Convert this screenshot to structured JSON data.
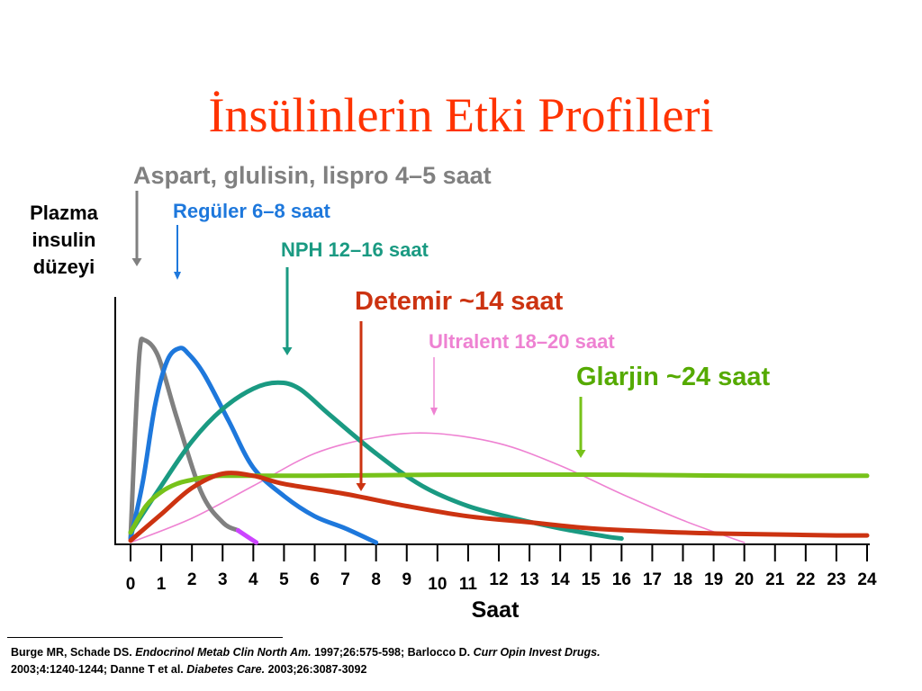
{
  "title": "İnsülinlerin Etki Profilleri",
  "chart_data": {
    "type": "line",
    "xlabel": "Saat",
    "ylabel_lines": [
      "Plazma",
      "insulin",
      "düzeyi"
    ],
    "xlim": [
      0,
      24
    ],
    "ylim": [
      0,
      1
    ],
    "x_ticks": [
      "0",
      "1",
      "2",
      "3",
      "4",
      "5",
      "6",
      "7",
      "8",
      "9",
      "10",
      "11",
      "12",
      "13",
      "14",
      "15",
      "16",
      "17",
      "18",
      "19",
      "20",
      "21",
      "22",
      "23",
      "24"
    ],
    "y_axis_ticks": false,
    "grid": false,
    "series": [
      {
        "name": "Aspart, glulisin, lispro 4–5 saat",
        "color": "#808080",
        "label_color": "#808080",
        "x": [
          0,
          0.15,
          0.3,
          0.45,
          0.9,
          1.5,
          2.3,
          3.0,
          3.5
        ],
        "y": [
          0.02,
          0.55,
          0.95,
          1.0,
          0.92,
          0.62,
          0.25,
          0.1,
          0.06
        ],
        "tail": {
          "color": "#cc44ff",
          "x": [
            3.5,
            3.8,
            4.1
          ],
          "y": [
            0.06,
            0.03,
            0.0
          ]
        }
      },
      {
        "name": "Regüler 6–8 saat",
        "color": "#1e78dc",
        "label_color": "#1e78dc",
        "x": [
          0,
          0.4,
          0.8,
          1.2,
          1.6,
          1.9,
          2.4,
          3.2,
          4.0,
          5.0,
          6.0,
          7.0,
          8.0
        ],
        "y": [
          0.02,
          0.3,
          0.68,
          0.9,
          0.96,
          0.93,
          0.83,
          0.6,
          0.37,
          0.23,
          0.13,
          0.07,
          0.0
        ]
      },
      {
        "name": "NPH 12–16 saat",
        "color": "#1a9a82",
        "label_color": "#1a9a82",
        "x": [
          0,
          1,
          2,
          3,
          4,
          4.8,
          5.5,
          6.5,
          8,
          9.5,
          11,
          12.5,
          14,
          15.5,
          16
        ],
        "y": [
          0.05,
          0.28,
          0.5,
          0.66,
          0.76,
          0.79,
          0.76,
          0.63,
          0.44,
          0.28,
          0.18,
          0.12,
          0.07,
          0.03,
          0.02
        ]
      },
      {
        "name": "Detemir ~14 saat",
        "color": "#cc3311",
        "label_color": "#cc3311",
        "x": [
          0,
          1,
          2,
          3,
          4,
          5,
          7,
          9,
          11,
          13,
          15,
          17,
          19,
          21,
          23,
          24
        ],
        "y": [
          0.01,
          0.14,
          0.27,
          0.34,
          0.33,
          0.29,
          0.24,
          0.18,
          0.13,
          0.1,
          0.07,
          0.055,
          0.045,
          0.04,
          0.035,
          0.035
        ]
      },
      {
        "name": "Ultralent 18–20 saat",
        "color": "#ee82d2",
        "label_color": "#ee82d2",
        "x": [
          0,
          2,
          4,
          6,
          8,
          9.8,
          12,
          14,
          16,
          18,
          20
        ],
        "y": [
          0.0,
          0.12,
          0.28,
          0.44,
          0.52,
          0.54,
          0.49,
          0.38,
          0.24,
          0.11,
          0.0
        ]
      },
      {
        "name": "Glarjin ~24 saat",
        "color": "#77c21a",
        "label_color": "#55aa00",
        "x": [
          0,
          0.5,
          1,
          1.5,
          2,
          2.5,
          3,
          4,
          6,
          10,
          16,
          20,
          24
        ],
        "y": [
          0.05,
          0.18,
          0.25,
          0.29,
          0.31,
          0.325,
          0.33,
          0.33,
          0.33,
          0.335,
          0.335,
          0.33,
          0.33
        ]
      }
    ]
  },
  "citation": {
    "line1_a": "Burge MR, Schade DS. ",
    "line1_b": "Endocrinol Metab Clin North Am.",
    "line1_c": " 1997;26:575-598; Barlocco D. ",
    "line1_d": "Curr Opin Invest Drugs.",
    "line2_a": "2003;4:1240-1244; Danne T et al. ",
    "line2_b": "Diabetes Care.",
    "line2_c": " 2003;26:3087-3092"
  }
}
